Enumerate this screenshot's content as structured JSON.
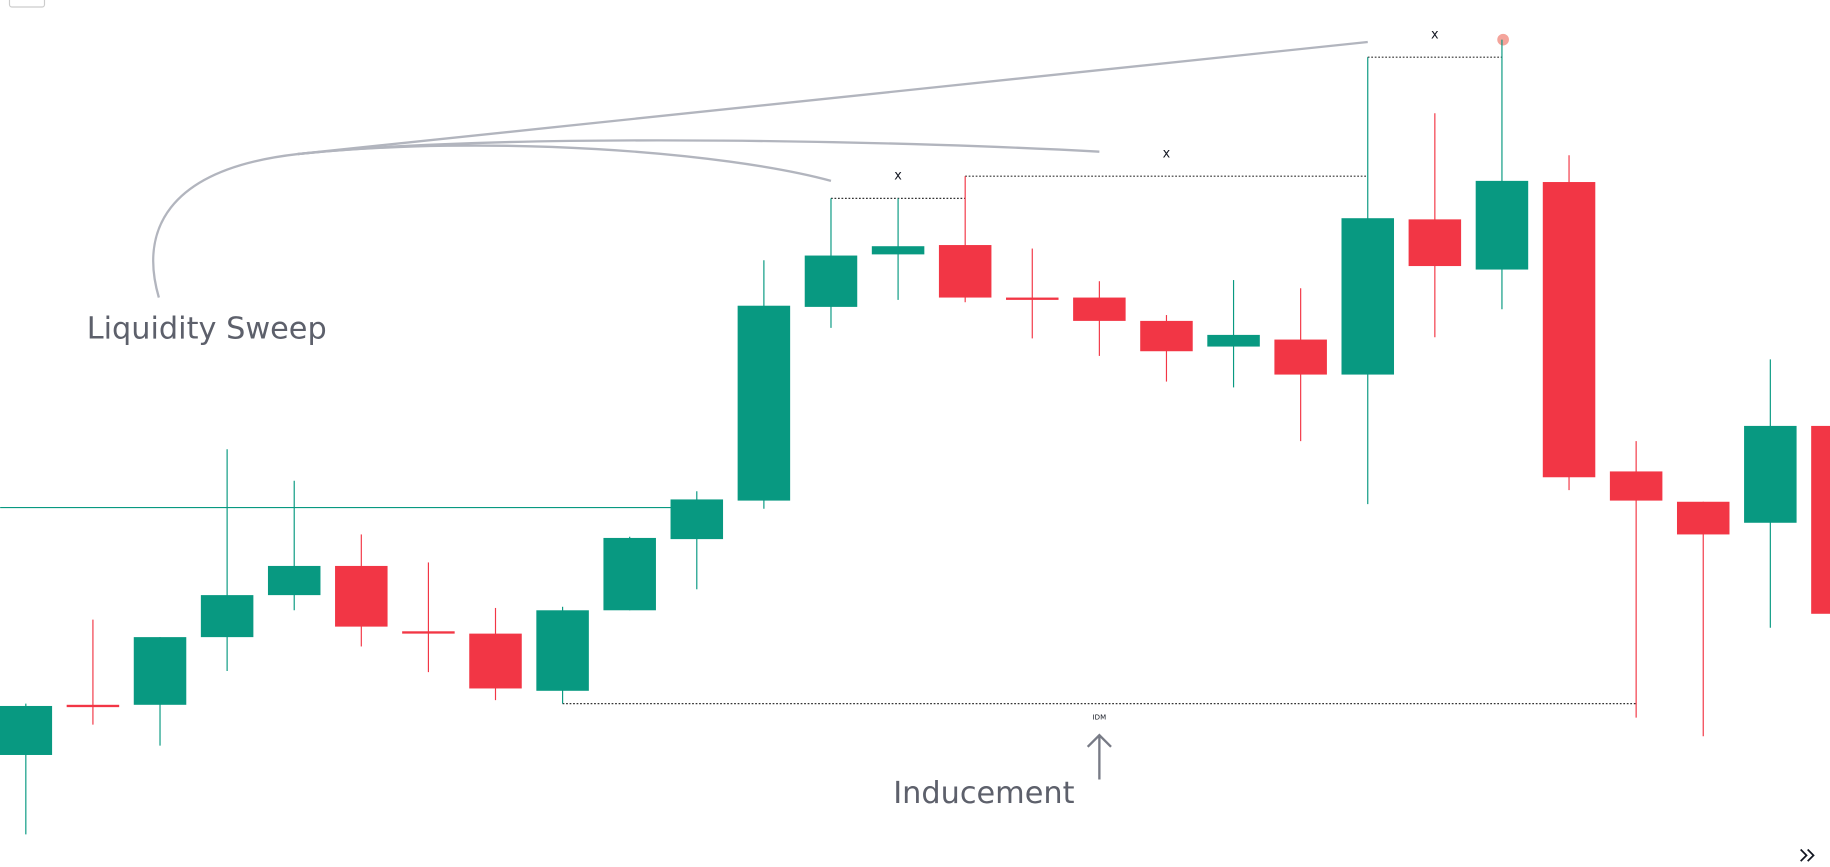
{
  "chart_data": {
    "type": "candlestick",
    "up_color": "#089981",
    "down_color": "#f23645",
    "ylim": [
      0,
      743
    ],
    "open": [
      96,
      139,
      139,
      197,
      233,
      258,
      202,
      200,
      151,
      220,
      281,
      314,
      480,
      525,
      533,
      488,
      488,
      468,
      446,
      452,
      422,
      555,
      512,
      587,
      339,
      313,
      295,
      378
    ],
    "high": [
      140,
      212,
      197,
      358,
      331,
      285,
      261,
      222,
      223,
      283,
      322,
      520,
      573,
      573,
      592,
      530,
      502,
      473,
      503,
      496,
      694,
      646,
      709,
      610,
      365,
      313,
      435,
      378
    ],
    "low": [
      28,
      122,
      104,
      168,
      220,
      189,
      167,
      143,
      140,
      220,
      238,
      307,
      462,
      486,
      484,
      453,
      438,
      416,
      411,
      365,
      311,
      454,
      478,
      323,
      128,
      112,
      205,
      217
    ],
    "close": [
      138,
      137,
      197,
      233,
      258,
      206,
      200,
      153,
      220,
      282,
      315,
      481,
      524,
      532,
      488,
      486,
      468,
      442,
      456,
      422,
      556,
      515,
      588,
      334,
      314,
      285,
      378,
      217
    ],
    "levels": [
      {
        "price": 308,
        "from": 0,
        "to": 10,
        "style": "solid",
        "color": "#089981"
      },
      {
        "price": 573,
        "from": 12,
        "to": 14,
        "style": "dotted",
        "color": "#333333",
        "label": "x"
      },
      {
        "price": 592,
        "from": 14,
        "to": 20,
        "style": "dotted",
        "color": "#333333",
        "label": "x"
      },
      {
        "price": 694,
        "from": 20,
        "to": 22,
        "style": "dotted",
        "color": "#333333",
        "label": "x"
      },
      {
        "price": 140,
        "from": 8,
        "to": 24,
        "style": "dotted",
        "color": "#333333",
        "label": "IDM"
      }
    ],
    "annotations": [
      "Liquidity Sweep",
      "Inducement"
    ]
  }
}
